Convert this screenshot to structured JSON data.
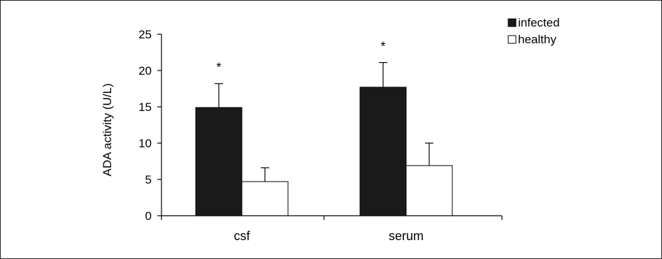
{
  "chart_data": {
    "type": "bar",
    "title": "",
    "xlabel": "",
    "ylabel": "ADA activity (U/L)",
    "categories": [
      "csf",
      "serum"
    ],
    "ylim": [
      0,
      25
    ],
    "yticks": [
      0,
      5,
      10,
      15,
      20,
      25
    ],
    "yticklabels": [
      "0",
      "5",
      "10",
      "15",
      "20",
      "25"
    ],
    "grid": false,
    "legend_position": "top-right",
    "series": [
      {
        "name": "infected",
        "color": "#1a1a1a",
        "values": [
          14.9,
          17.7
        ],
        "errors": [
          3.3,
          3.4
        ],
        "annotations": [
          "*",
          "*"
        ]
      },
      {
        "name": "healthy",
        "color": "#ffffff",
        "values": [
          4.7,
          6.9
        ],
        "errors": [
          1.9,
          3.1
        ],
        "annotations": [
          "",
          ""
        ]
      }
    ]
  }
}
